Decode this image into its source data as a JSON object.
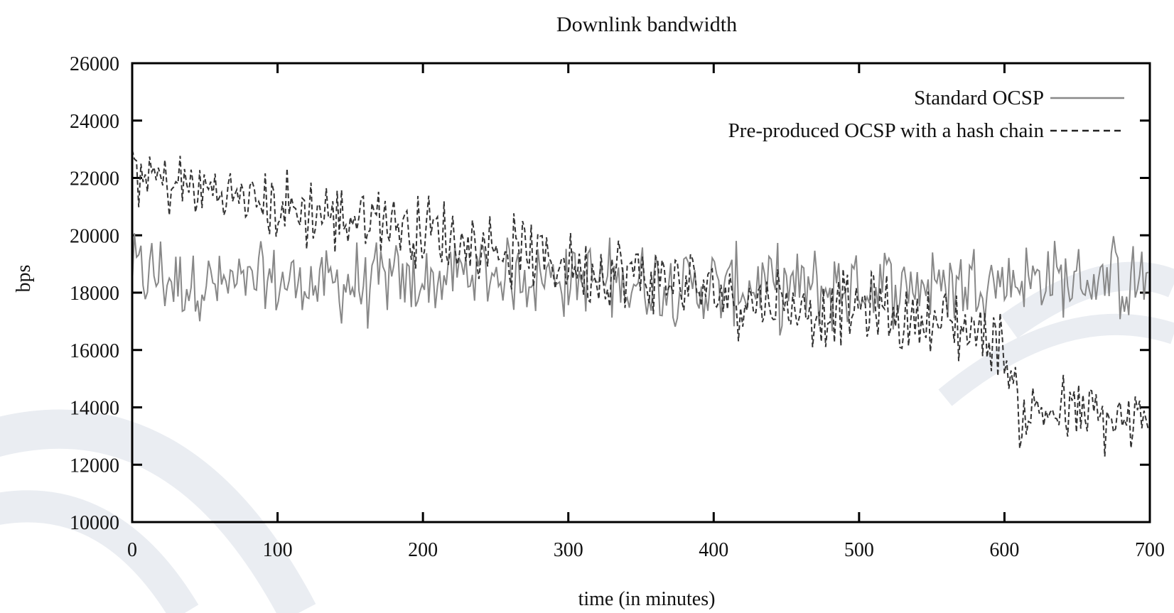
{
  "chart_data": {
    "type": "line",
    "title": "Downlink bandwidth",
    "xlabel": "time (in minutes)",
    "ylabel": "bps",
    "xlim": [
      0,
      700
    ],
    "ylim": [
      10000,
      26000
    ],
    "xticks": [
      "0",
      "100",
      "200",
      "300",
      "400",
      "500",
      "600",
      "700"
    ],
    "yticks": [
      "10000",
      "12000",
      "14000",
      "16000",
      "18000",
      "20000",
      "22000",
      "24000",
      "26000"
    ],
    "grid": false,
    "legend_position": "top-right",
    "series": [
      {
        "name": "Standard OCSP",
        "style": "solid",
        "color": "#888888",
        "x": [
          0,
          25,
          50,
          75,
          100,
          125,
          150,
          175,
          200,
          225,
          250,
          275,
          300,
          325,
          350,
          375,
          400,
          425,
          450,
          475,
          500,
          525,
          550,
          575,
          600,
          625,
          650,
          675,
          700
        ],
        "y": [
          18800,
          18500,
          18300,
          18200,
          18400,
          18300,
          18300,
          18400,
          18300,
          18600,
          18700,
          18600,
          18500,
          18400,
          18400,
          18300,
          18200,
          18200,
          18100,
          18100,
          18200,
          18300,
          18300,
          18400,
          18500,
          18500,
          18400,
          18400,
          18400
        ],
        "noise": 1200
      },
      {
        "name": "Pre-produced OCSP with a  hash chain",
        "style": "dashed",
        "color": "#333333",
        "x": [
          0,
          25,
          50,
          75,
          100,
          125,
          150,
          175,
          200,
          225,
          250,
          275,
          300,
          325,
          350,
          375,
          400,
          425,
          450,
          475,
          500,
          525,
          550,
          575,
          590,
          600,
          610,
          625,
          650,
          675,
          700
        ],
        "y": [
          22300,
          21800,
          21600,
          21300,
          21000,
          20800,
          20600,
          20600,
          20200,
          19800,
          19500,
          19300,
          19000,
          18800,
          18600,
          18300,
          18000,
          17800,
          17600,
          17400,
          17500,
          17200,
          17000,
          16800,
          16500,
          16000,
          13800,
          13900,
          13700,
          13500,
          13200
        ],
        "noise": 1100
      }
    ]
  }
}
